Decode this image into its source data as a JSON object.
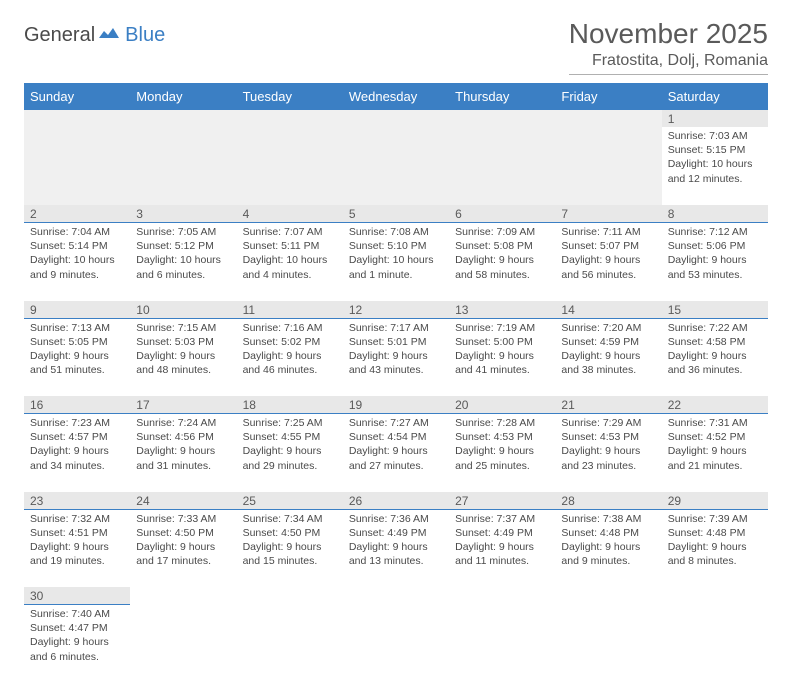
{
  "logo": {
    "general": "General",
    "blue": "Blue"
  },
  "title": "November 2025",
  "location": "Fratostita, Dolj, Romania",
  "colors": {
    "headerBg": "#3b7fc4",
    "headerText": "#ffffff",
    "dayNumBg": "#e8e8e8",
    "text": "#4a4a4a",
    "titleText": "#5a5a5a",
    "separator": "#3b7fc4"
  },
  "weekdays": [
    "Sunday",
    "Monday",
    "Tuesday",
    "Wednesday",
    "Thursday",
    "Friday",
    "Saturday"
  ],
  "firstDayIndex": 6,
  "daysInMonth": 30,
  "days": {
    "1": {
      "sunrise": "7:03 AM",
      "sunset": "5:15 PM",
      "daylight": "10 hours and 12 minutes."
    },
    "2": {
      "sunrise": "7:04 AM",
      "sunset": "5:14 PM",
      "daylight": "10 hours and 9 minutes."
    },
    "3": {
      "sunrise": "7:05 AM",
      "sunset": "5:12 PM",
      "daylight": "10 hours and 6 minutes."
    },
    "4": {
      "sunrise": "7:07 AM",
      "sunset": "5:11 PM",
      "daylight": "10 hours and 4 minutes."
    },
    "5": {
      "sunrise": "7:08 AM",
      "sunset": "5:10 PM",
      "daylight": "10 hours and 1 minute."
    },
    "6": {
      "sunrise": "7:09 AM",
      "sunset": "5:08 PM",
      "daylight": "9 hours and 58 minutes."
    },
    "7": {
      "sunrise": "7:11 AM",
      "sunset": "5:07 PM",
      "daylight": "9 hours and 56 minutes."
    },
    "8": {
      "sunrise": "7:12 AM",
      "sunset": "5:06 PM",
      "daylight": "9 hours and 53 minutes."
    },
    "9": {
      "sunrise": "7:13 AM",
      "sunset": "5:05 PM",
      "daylight": "9 hours and 51 minutes."
    },
    "10": {
      "sunrise": "7:15 AM",
      "sunset": "5:03 PM",
      "daylight": "9 hours and 48 minutes."
    },
    "11": {
      "sunrise": "7:16 AM",
      "sunset": "5:02 PM",
      "daylight": "9 hours and 46 minutes."
    },
    "12": {
      "sunrise": "7:17 AM",
      "sunset": "5:01 PM",
      "daylight": "9 hours and 43 minutes."
    },
    "13": {
      "sunrise": "7:19 AM",
      "sunset": "5:00 PM",
      "daylight": "9 hours and 41 minutes."
    },
    "14": {
      "sunrise": "7:20 AM",
      "sunset": "4:59 PM",
      "daylight": "9 hours and 38 minutes."
    },
    "15": {
      "sunrise": "7:22 AM",
      "sunset": "4:58 PM",
      "daylight": "9 hours and 36 minutes."
    },
    "16": {
      "sunrise": "7:23 AM",
      "sunset": "4:57 PM",
      "daylight": "9 hours and 34 minutes."
    },
    "17": {
      "sunrise": "7:24 AM",
      "sunset": "4:56 PM",
      "daylight": "9 hours and 31 minutes."
    },
    "18": {
      "sunrise": "7:25 AM",
      "sunset": "4:55 PM",
      "daylight": "9 hours and 29 minutes."
    },
    "19": {
      "sunrise": "7:27 AM",
      "sunset": "4:54 PM",
      "daylight": "9 hours and 27 minutes."
    },
    "20": {
      "sunrise": "7:28 AM",
      "sunset": "4:53 PM",
      "daylight": "9 hours and 25 minutes."
    },
    "21": {
      "sunrise": "7:29 AM",
      "sunset": "4:53 PM",
      "daylight": "9 hours and 23 minutes."
    },
    "22": {
      "sunrise": "7:31 AM",
      "sunset": "4:52 PM",
      "daylight": "9 hours and 21 minutes."
    },
    "23": {
      "sunrise": "7:32 AM",
      "sunset": "4:51 PM",
      "daylight": "9 hours and 19 minutes."
    },
    "24": {
      "sunrise": "7:33 AM",
      "sunset": "4:50 PM",
      "daylight": "9 hours and 17 minutes."
    },
    "25": {
      "sunrise": "7:34 AM",
      "sunset": "4:50 PM",
      "daylight": "9 hours and 15 minutes."
    },
    "26": {
      "sunrise": "7:36 AM",
      "sunset": "4:49 PM",
      "daylight": "9 hours and 13 minutes."
    },
    "27": {
      "sunrise": "7:37 AM",
      "sunset": "4:49 PM",
      "daylight": "9 hours and 11 minutes."
    },
    "28": {
      "sunrise": "7:38 AM",
      "sunset": "4:48 PM",
      "daylight": "9 hours and 9 minutes."
    },
    "29": {
      "sunrise": "7:39 AM",
      "sunset": "4:48 PM",
      "daylight": "9 hours and 8 minutes."
    },
    "30": {
      "sunrise": "7:40 AM",
      "sunset": "4:47 PM",
      "daylight": "9 hours and 6 minutes."
    }
  },
  "labels": {
    "sunrise": "Sunrise:",
    "sunset": "Sunset:",
    "daylight": "Daylight:"
  }
}
